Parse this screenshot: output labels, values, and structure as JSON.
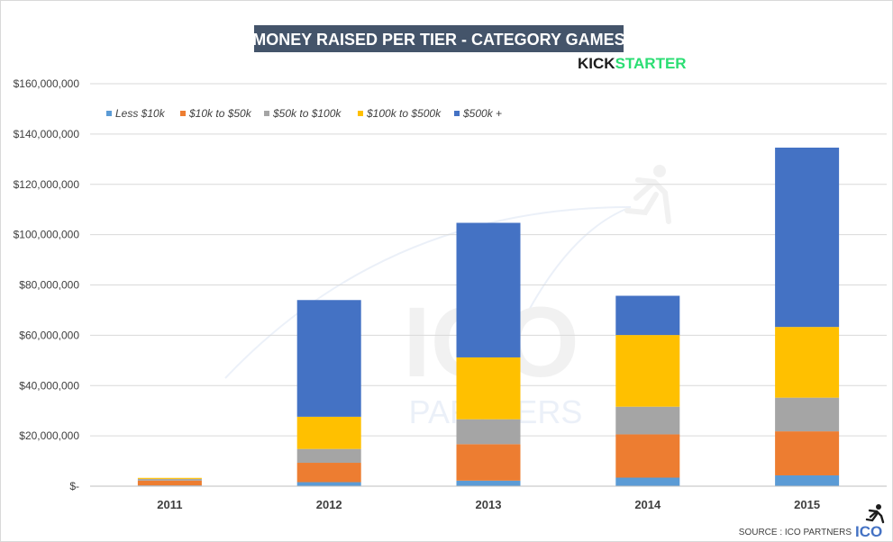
{
  "chart_data": {
    "type": "bar",
    "stacked": true,
    "title": "MONEY RAISED PER TIER - CATEGORY GAMES",
    "brand": {
      "part1": "KICK",
      "part2": "STARTER"
    },
    "watermark": {
      "line1": "ICO",
      "line2": "PARTNERS"
    },
    "categories": [
      "2011",
      "2012",
      "2013",
      "2014",
      "2015"
    ],
    "series": [
      {
        "name": "Less $10k",
        "color": "#5B9BD5",
        "values": [
          300000,
          1600000,
          2200000,
          3400000,
          4300000
        ]
      },
      {
        "name": "$10k to $50k",
        "color": "#ED7D31",
        "values": [
          1900000,
          7700000,
          14500000,
          17200000,
          17500000
        ]
      },
      {
        "name": "$50k to $100k",
        "color": "#A5A5A5",
        "values": [
          700000,
          5500000,
          9900000,
          11000000,
          13400000
        ]
      },
      {
        "name": "$100k to $500k",
        "color": "#FFC000",
        "values": [
          400000,
          12800000,
          24600000,
          28500000,
          28100000
        ]
      },
      {
        "name": "$500k +",
        "color": "#4472C4",
        "values": [
          0,
          46400000,
          53500000,
          15600000,
          71300000
        ]
      }
    ],
    "ylim": [
      0,
      160000000
    ],
    "yticks": [
      0,
      20000000,
      40000000,
      60000000,
      80000000,
      100000000,
      120000000,
      140000000,
      160000000
    ],
    "ytick_labels": [
      "$-",
      "$20,000,000",
      "$40,000,000",
      "$60,000,000",
      "$80,000,000",
      "$100,000,000",
      "$120,000,000",
      "$140,000,000",
      "$160,000,000"
    ],
    "xlabel": "",
    "ylabel": "",
    "legend_position": "top-left",
    "grid": true,
    "source": "SOURCE : ICO PARTNERS",
    "source_logo": "ICO"
  }
}
